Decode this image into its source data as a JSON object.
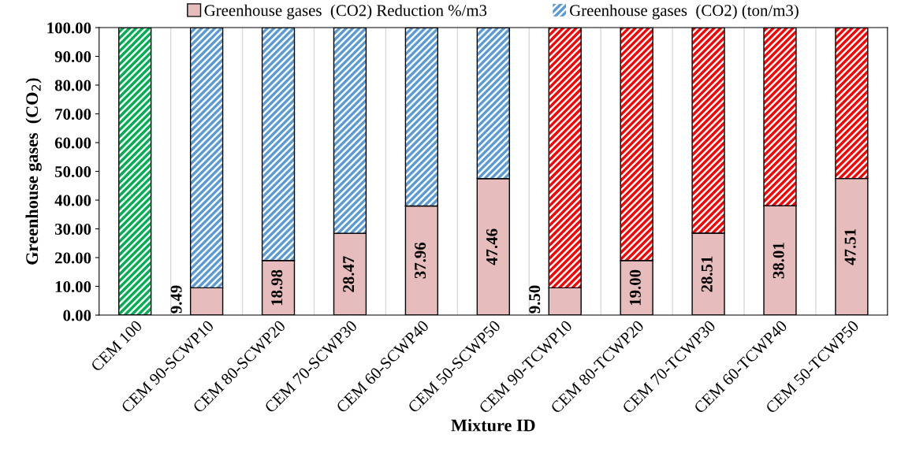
{
  "chart_data": {
    "type": "bar",
    "stacked": true,
    "xlabel": "Mixture ID",
    "ylabel": "Greenhouse gases  (CO$_{2}$)",
    "categories": [
      "CEM 100",
      "CEM 90-SCWP10",
      "CEM 80-SCWP20",
      "CEM 70-SCWP30",
      "CEM 60-SCWP40",
      "CEM 50-SCWP50",
      "CEM 90-TCWP10",
      "CEM 80-TCWP20",
      "CEM 70-TCWP30",
      "CEM 60-TCWP40",
      "CEM 50-TCWP50"
    ],
    "series": [
      {
        "name": "Greenhouse gases  (CO2) Reduction %/m3",
        "color": "#e6bcbc",
        "values": [
          0,
          9.49,
          18.98,
          28.47,
          37.96,
          47.46,
          9.5,
          19.0,
          28.51,
          38.01,
          47.51
        ],
        "value_labels": [
          null,
          "9.49",
          "18.98",
          "28.47",
          "37.96",
          "47.46",
          "9.50",
          "19.00",
          "28.51",
          "38.01",
          "47.51"
        ]
      },
      {
        "name": "Greenhouse gases  (CO2) (ton/m3)",
        "color": "#5b9bd5",
        "colors": [
          "#00b050",
          "#5b9bd5",
          "#5b9bd5",
          "#5b9bd5",
          "#5b9bd5",
          "#5b9bd5",
          "#ff0000",
          "#ff0000",
          "#ff0000",
          "#ff0000",
          "#ff0000"
        ],
        "values": [
          100,
          90.5,
          81,
          71.5,
          62,
          52.5,
          90.5,
          81,
          71.5,
          62,
          52.5
        ]
      }
    ],
    "ylim": [
      0,
      100
    ],
    "yticks": [
      {
        "value": 0,
        "label": "0.00"
      },
      {
        "value": 10,
        "label": "10.00"
      },
      {
        "value": 20,
        "label": "20.00"
      },
      {
        "value": 30,
        "label": "30.00"
      },
      {
        "value": 40,
        "label": "40.00"
      },
      {
        "value": 50,
        "label": "50.00"
      },
      {
        "value": 60,
        "label": "60.00"
      },
      {
        "value": 70,
        "label": "70.00"
      },
      {
        "value": 80,
        "label": "80.00"
      },
      {
        "value": 90,
        "label": "90.00"
      },
      {
        "value": 100,
        "label": "100.00"
      }
    ],
    "grid": "x",
    "legend": "top"
  }
}
